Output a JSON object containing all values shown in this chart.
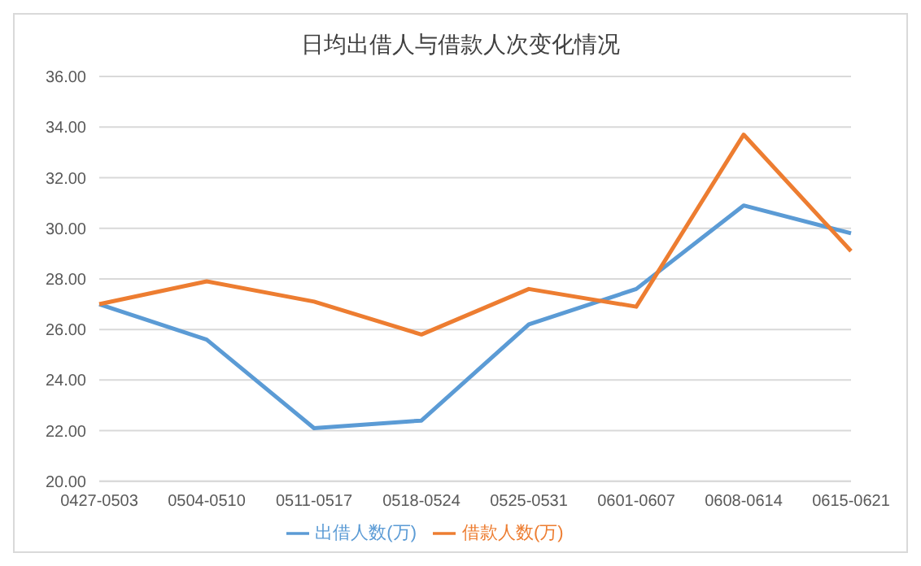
{
  "chart_data": {
    "type": "line",
    "title": "日均出借人与借款人次变化情况",
    "categories": [
      "0427-0503",
      "0504-0510",
      "0511-0517",
      "0518-0524",
      "0525-0531",
      "0601-0607",
      "0608-0614",
      "0615-0621"
    ],
    "series": [
      {
        "name": "出借人数(万)",
        "color": "#5b9bd5",
        "values": [
          27.0,
          25.6,
          22.1,
          22.4,
          26.2,
          27.6,
          30.9,
          29.8
        ]
      },
      {
        "name": "借款人数(万)",
        "color": "#ed7d31",
        "values": [
          27.0,
          27.9,
          27.1,
          25.8,
          27.6,
          26.9,
          33.7,
          29.1
        ]
      }
    ],
    "ylim": [
      20,
      36
    ],
    "yticks": [
      {
        "value": 20,
        "label": "20.00"
      },
      {
        "value": 22,
        "label": "22.00"
      },
      {
        "value": 24,
        "label": "24.00"
      },
      {
        "value": 26,
        "label": "26.00"
      },
      {
        "value": 28,
        "label": "28.00"
      },
      {
        "value": 30,
        "label": "30.00"
      },
      {
        "value": 32,
        "label": "32.00"
      },
      {
        "value": 34,
        "label": "34.00"
      },
      {
        "value": 36,
        "label": "36.00"
      }
    ],
    "grid": "y",
    "legend": "bottom",
    "marker": "none",
    "line_style": "solid"
  }
}
